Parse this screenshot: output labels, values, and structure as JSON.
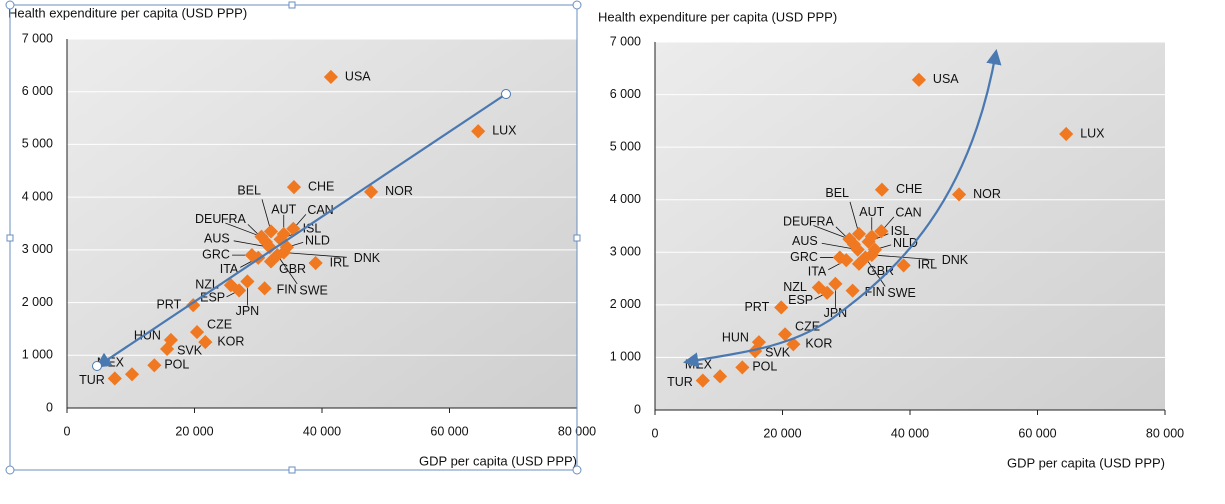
{
  "chart_data": [
    {
      "type": "scatter",
      "title": "Health expenditure per capita (USD PPP)",
      "x_label": "GDP per capita (USD PPP)",
      "color": "#f07820",
      "labels": [
        "USA",
        "LUX",
        "CHE",
        "NOR",
        "BEL",
        "AUT",
        "CAN",
        "DEU",
        "FRA",
        "ISL",
        "AUS",
        "NLD",
        "DNK",
        "GRC",
        "ITA",
        "GBR",
        "IRL",
        "SWE",
        "NZL",
        "FIN",
        "ESP",
        "JPN",
        "PRT",
        "CZE",
        "KOR",
        "HUN",
        "SVK",
        "POL",
        "MEX",
        "TUR"
      ],
      "x": [
        41400,
        64500,
        35600,
        47700,
        32000,
        34000,
        35500,
        30500,
        31200,
        33500,
        31800,
        34500,
        34000,
        29000,
        30000,
        32000,
        39000,
        33000,
        25700,
        31000,
        27000,
        28300,
        19800,
        20400,
        21700,
        16300,
        15700,
        13700,
        10200,
        7500
      ],
      "y": [
        6280,
        5250,
        4190,
        4100,
        3350,
        3300,
        3400,
        3250,
        3150,
        3200,
        3050,
        3050,
        2950,
        2900,
        2850,
        2780,
        2750,
        2900,
        2330,
        2270,
        2230,
        2400,
        1950,
        1440,
        1250,
        1290,
        1120,
        810,
        640,
        560
      ],
      "xlim": [
        0,
        80000
      ],
      "xticks": [
        0,
        {
          "value": 20000,
          "label": "20 000"
        },
        {
          "value": 40000,
          "label": "40 000"
        },
        {
          "value": 60000,
          "label": "60 000"
        },
        {
          "value": 80000,
          "label": "80 000"
        }
      ],
      "ylim": [
        0,
        7000
      ],
      "yticks": [
        0,
        {
          "value": 1000,
          "label": "1 000"
        },
        {
          "value": 2000,
          "label": "2 000"
        },
        {
          "value": 3000,
          "label": "3 000"
        },
        {
          "value": 4000,
          "label": "4 000"
        },
        {
          "value": 5000,
          "label": "5 000"
        },
        {
          "value": 6000,
          "label": "6 000"
        },
        {
          "value": 7000,
          "label": "7 000"
        }
      ],
      "grid": true
    },
    {
      "type": "scatter",
      "title": "Health expenditure per capita (USD PPP)",
      "x_label": "GDP per capita (USD PPP)",
      "color": "#f07820",
      "labels": [
        "USA",
        "LUX",
        "CHE",
        "NOR",
        "BEL",
        "AUT",
        "CAN",
        "DEU",
        "FRA",
        "ISL",
        "AUS",
        "NLD",
        "DNK",
        "GRC",
        "ITA",
        "GBR",
        "IRL",
        "SWE",
        "NZL",
        "FIN",
        "ESP",
        "JPN",
        "PRT",
        "CZE",
        "KOR",
        "HUN",
        "SVK",
        "POL",
        "MEX",
        "TUR"
      ],
      "x": [
        41400,
        64500,
        35600,
        47700,
        32000,
        34000,
        35500,
        30500,
        31200,
        33500,
        31800,
        34500,
        34000,
        29000,
        30000,
        32000,
        39000,
        33000,
        25700,
        31000,
        27000,
        28300,
        19800,
        20400,
        21700,
        16300,
        15700,
        13700,
        10200,
        7500
      ],
      "y": [
        6280,
        5250,
        4190,
        4100,
        3350,
        3300,
        3400,
        3250,
        3150,
        3200,
        3050,
        3050,
        2950,
        2900,
        2850,
        2780,
        2750,
        2900,
        2330,
        2270,
        2230,
        2400,
        1950,
        1440,
        1250,
        1290,
        1120,
        810,
        640,
        560
      ],
      "xlim": [
        0,
        80000
      ],
      "xticks": [
        0,
        {
          "value": 20000,
          "label": "20 000"
        },
        {
          "value": 40000,
          "label": "40 000"
        },
        {
          "value": 60000,
          "label": "60 000"
        },
        {
          "value": 80000,
          "label": "80 000"
        }
      ],
      "ylim": [
        0,
        7000
      ],
      "yticks": [
        0,
        {
          "value": 1000,
          "label": "1 000"
        },
        {
          "value": 2000,
          "label": "2 000"
        },
        {
          "value": 3000,
          "label": "3 000"
        },
        {
          "value": 4000,
          "label": "4 000"
        },
        {
          "value": 5000,
          "label": "5 000"
        },
        {
          "value": 6000,
          "label": "6 000"
        },
        {
          "value": 7000,
          "label": "7 000"
        }
      ],
      "grid": true
    }
  ]
}
